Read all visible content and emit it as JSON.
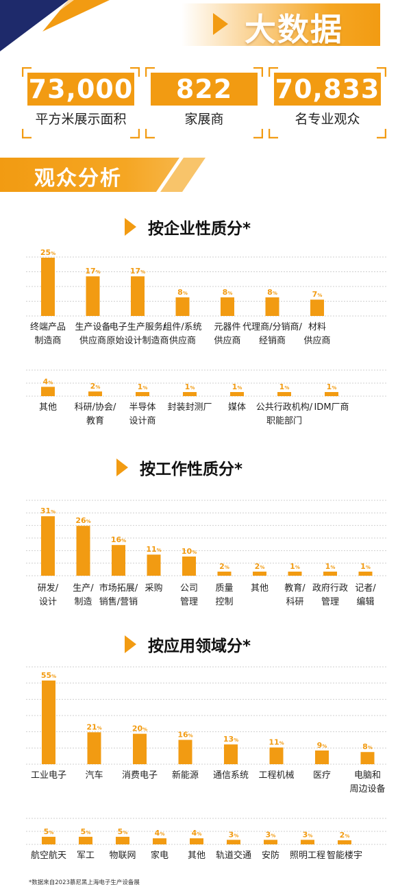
{
  "banner": {
    "title": "大数据"
  },
  "stats": [
    {
      "value": "73,000",
      "label": "平方米展示面积"
    },
    {
      "value": "822",
      "label": "家展商"
    },
    {
      "value": "70,833",
      "label": "名专业观众"
    }
  ],
  "section": {
    "title": "观众分析"
  },
  "colors": {
    "accent": "#f29b12",
    "dark_blue": "#1e2a6b",
    "grid": "#cfcfcf"
  },
  "chart_data": [
    {
      "type": "bar",
      "title": "按企业性质分*",
      "unit": "%",
      "rows": [
        {
          "categories": [
            "终端产品\n制造商",
            "生产设备\n供应商",
            "电子生产服务/\n原始设计制造商",
            "组件/系统\n供应商",
            "元器件\n供应商",
            "代理商/分销商/\n经销商",
            "材料\n供应商"
          ],
          "values": [
            25,
            17,
            17,
            8,
            8,
            8,
            7
          ]
        },
        {
          "categories": [
            "其他",
            "科研/协会/\n教育",
            "半导体\n设计商",
            "封装封测厂",
            "媒体",
            "公共行政机构/\n职能部门",
            "IDM厂商"
          ],
          "values": [
            4,
            2,
            1,
            1,
            1,
            1,
            1
          ]
        }
      ]
    },
    {
      "type": "bar",
      "title": "按工作性质分*",
      "unit": "%",
      "rows": [
        {
          "categories": [
            "研发/\n设计",
            "生产/\n制造",
            "市场拓展/\n销售/营销",
            "采购",
            "公司\n管理",
            "质量\n控制",
            "其他",
            "教育/\n科研",
            "政府行政\n管理",
            "记者/\n编辑"
          ],
          "values": [
            31,
            26,
            16,
            11,
            10,
            2,
            2,
            1,
            1,
            1
          ]
        }
      ]
    },
    {
      "type": "bar",
      "title": "按应用领域分*",
      "unit": "%",
      "rows": [
        {
          "categories": [
            "工业电子",
            "汽车",
            "消费电子",
            "新能源",
            "通信系统",
            "工程机械",
            "医疗",
            "电脑和\n周边设备"
          ],
          "values": [
            55,
            21,
            20,
            16,
            13,
            11,
            9,
            8
          ]
        },
        {
          "categories": [
            "航空航天",
            "军工",
            "物联网",
            "家电",
            "其他",
            "轨道交通",
            "安防",
            "照明工程",
            "智能楼宇"
          ],
          "values": [
            5,
            5,
            5,
            4,
            4,
            3,
            3,
            3,
            2
          ]
        }
      ]
    }
  ],
  "footnote": "*数据来自2023慕尼黑上海电子生产设备展"
}
